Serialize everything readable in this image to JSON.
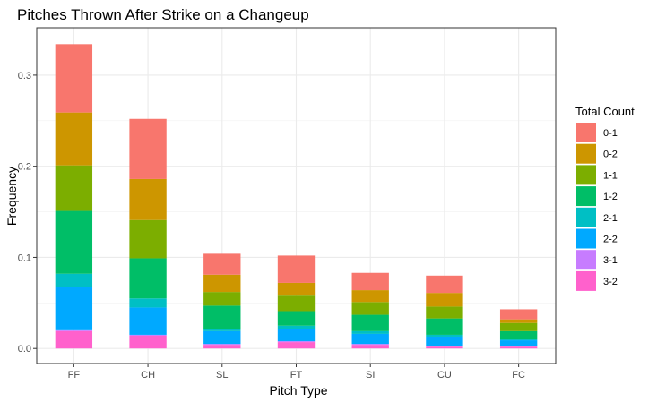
{
  "chart_data": {
    "type": "bar",
    "stacked": true,
    "title": "Pitches Thrown After Strike on a Changeup",
    "xlabel": "Pitch Type",
    "ylabel": "Frequency",
    "ylim": [
      -0.0165,
      0.352
    ],
    "yticks": [
      0.0,
      0.1,
      0.2,
      0.3
    ],
    "ytick_labels": [
      "0.0",
      "0.1",
      "0.2",
      "0.3"
    ],
    "grid": true,
    "legend_position": "right",
    "legend_title": "Total Count",
    "categories": [
      "FF",
      "CH",
      "SL",
      "FT",
      "SI",
      "CU",
      "FC"
    ],
    "series": [
      {
        "name": "0-1",
        "color": "#F8766D",
        "values": [
          0.075,
          0.066,
          0.023,
          0.03,
          0.019,
          0.019,
          0.011
        ]
      },
      {
        "name": "0-2",
        "color": "#CD9600",
        "values": [
          0.058,
          0.045,
          0.019,
          0.014,
          0.013,
          0.015,
          0.004
        ]
      },
      {
        "name": "1-1",
        "color": "#7CAE00",
        "values": [
          0.05,
          0.042,
          0.015,
          0.017,
          0.014,
          0.013,
          0.009
        ]
      },
      {
        "name": "1-2",
        "color": "#00BE67",
        "values": [
          0.069,
          0.044,
          0.026,
          0.016,
          0.018,
          0.018,
          0.009
        ]
      },
      {
        "name": "2-1",
        "color": "#00BFC4",
        "values": [
          0.014,
          0.01,
          0.002,
          0.004,
          0.003,
          0.002,
          0.001
        ]
      },
      {
        "name": "2-2",
        "color": "#00A9FF",
        "values": [
          0.048,
          0.03,
          0.014,
          0.013,
          0.011,
          0.01,
          0.006
        ]
      },
      {
        "name": "3-1",
        "color": "#C77CFF",
        "values": [
          0.001,
          0.001,
          0.001,
          0.001,
          0.001,
          0.001,
          0.001
        ]
      },
      {
        "name": "3-2",
        "color": "#FF61CC",
        "values": [
          0.019,
          0.014,
          0.004,
          0.007,
          0.004,
          0.002,
          0.002
        ]
      }
    ]
  }
}
